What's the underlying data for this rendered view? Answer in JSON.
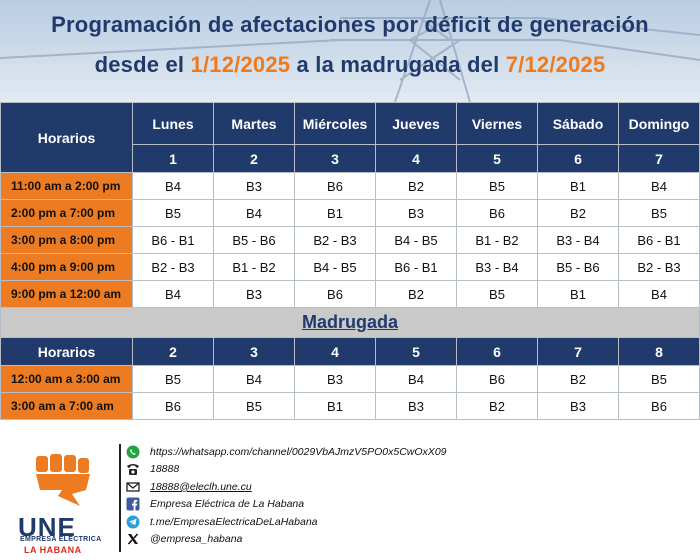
{
  "header": {
    "title_line1": "Programación de afectaciones por déficit de generación",
    "title_line2_prefix": "desde el ",
    "start_date": "1/12/2025",
    "title_line2_mid": " a la madrugada del ",
    "end_date": "7/12/2025"
  },
  "schedule": {
    "horarios_label": "Horarios",
    "days": [
      "Lunes",
      "Martes",
      "Miércoles",
      "Jueves",
      "Viernes",
      "Sábado",
      "Domingo"
    ],
    "day_numbers": [
      "1",
      "2",
      "3",
      "4",
      "5",
      "6",
      "7"
    ],
    "rows": [
      {
        "time": "11:00 am a 2:00 pm",
        "cells": [
          "B4",
          "B3",
          "B6",
          "B2",
          "B5",
          "B1",
          "B4"
        ]
      },
      {
        "time": "2:00 pm a 7:00 pm",
        "cells": [
          "B5",
          "B4",
          "B1",
          "B3",
          "B6",
          "B2",
          "B5"
        ]
      },
      {
        "time": "3:00 pm a 8:00 pm",
        "cells": [
          "B6 - B1",
          "B5 - B6",
          "B2 - B3",
          "B4 - B5",
          "B1 - B2",
          "B3 - B4",
          "B6 - B1"
        ]
      },
      {
        "time": "4:00 pm a 9:00 pm",
        "cells": [
          "B2 - B3",
          "B1 - B2",
          "B4 - B5",
          "B6 - B1",
          "B3 - B4",
          "B5 - B6",
          "B2 - B3"
        ]
      },
      {
        "time": "9:00 pm a 12:00 am",
        "cells": [
          "B4",
          "B3",
          "B6",
          "B2",
          "B5",
          "B1",
          "B4"
        ]
      }
    ]
  },
  "madrugada": {
    "title": "Madrugada",
    "horarios_label": "Horarios",
    "day_numbers": [
      "2",
      "3",
      "4",
      "5",
      "6",
      "7",
      "8"
    ],
    "rows": [
      {
        "time": "12:00 am a 3:00 am",
        "cells": [
          "B5",
          "B4",
          "B3",
          "B4",
          "B6",
          "B2",
          "B5"
        ]
      },
      {
        "time": "3:00 am a 7:00 am",
        "cells": [
          "B6",
          "B5",
          "B1",
          "B3",
          "B2",
          "B3",
          "B6"
        ]
      }
    ]
  },
  "footer": {
    "logo_text": "UNE",
    "logo_sub1": "EMPRESA ELÉCTRICA",
    "logo_sub2": "LA HABANA",
    "contacts": [
      {
        "icon": "whatsapp-icon",
        "text": "https://whatsapp.com/channel/0029VbAJmzV5PO0x5CwOxX09"
      },
      {
        "icon": "phone-icon",
        "text": "18888"
      },
      {
        "icon": "mail-icon",
        "text": "18888@eleclh.une.cu"
      },
      {
        "icon": "facebook-icon",
        "text": "Empresa Eléctrica de La Habana"
      },
      {
        "icon": "telegram-icon",
        "text": "t.me/EmpresaElectricaDeLaHabana"
      },
      {
        "icon": "x-icon",
        "text": "@empresa_habana"
      }
    ]
  },
  "colors": {
    "navy": "#1f3a6b",
    "orange": "#ec7b22",
    "gray_band": "#c9c9c9",
    "logo_red": "#d92b1f"
  }
}
